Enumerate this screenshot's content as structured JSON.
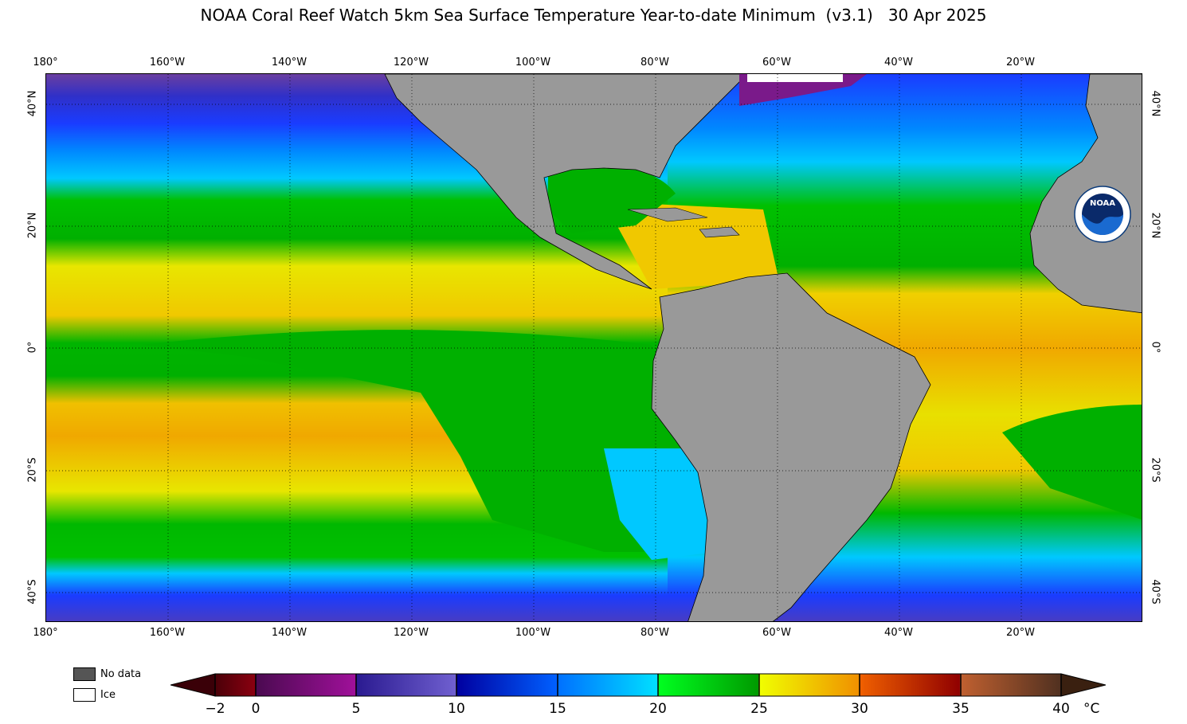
{
  "title": "NOAA Coral Reef Watch 5km Sea Surface Temperature Year-to-date Minimum  (v3.1)   30 Apr 2025",
  "lon_labels": [
    "180°",
    "160°W",
    "140°W",
    "120°W",
    "100°W",
    "80°W",
    "60°W",
    "40°W",
    "20°W"
  ],
  "lat_labels": [
    "40°N",
    "20°N",
    "0°",
    "20°S",
    "40°S"
  ],
  "legend": {
    "no_data": "No data",
    "ice": "Ice",
    "no_data_color": "#555555",
    "ice_color": "#ffffff"
  },
  "colorbar": {
    "ticks": [
      "−2",
      "0",
      "5",
      "10",
      "15",
      "20",
      "25",
      "30",
      "35",
      "40"
    ],
    "unit": "°C",
    "range": [
      -2,
      40
    ]
  },
  "colors": {
    "land": "#999999",
    "cold": "#6a3fa0",
    "blue": "#1a3cff",
    "cyan": "#00c8ff",
    "green": "#00b800",
    "yellow": "#f0e800",
    "orange": "#f0a000"
  },
  "logo": {
    "text": "NOAA"
  }
}
